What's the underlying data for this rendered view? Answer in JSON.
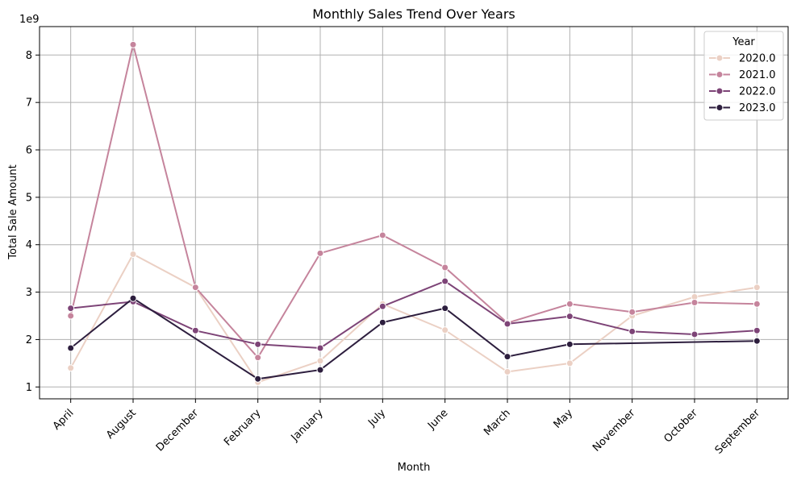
{
  "chart_data": {
    "type": "line",
    "title": "Monthly Sales Trend Over Years",
    "xlabel": "Month",
    "ylabel": "Total Sale Amount",
    "y_scale_label": "1e9",
    "categories": [
      "April",
      "August",
      "December",
      "February",
      "January",
      "July",
      "June",
      "March",
      "May",
      "November",
      "October",
      "September"
    ],
    "ylim": [
      0.75,
      8.6
    ],
    "yticks": [
      1,
      2,
      3,
      4,
      5,
      6,
      7,
      8
    ],
    "grid": true,
    "legend": {
      "title": "Year",
      "placement": "top-right"
    },
    "series": [
      {
        "name": "2020.0",
        "color": "#ebd0c4",
        "values": [
          1.4,
          3.8,
          3.1,
          1.1,
          1.55,
          2.75,
          2.2,
          1.32,
          1.5,
          2.5,
          2.9,
          3.1
        ]
      },
      {
        "name": "2021.0",
        "color": "#c5849c",
        "values": [
          2.5,
          8.22,
          3.1,
          1.62,
          3.82,
          4.2,
          3.52,
          2.35,
          2.75,
          2.58,
          2.78,
          2.75
        ]
      },
      {
        "name": "2022.0",
        "color": "#7d4477",
        "values": [
          2.66,
          2.8,
          2.19,
          1.9,
          1.82,
          2.7,
          3.23,
          2.33,
          2.49,
          2.17,
          2.11,
          2.19
        ]
      },
      {
        "name": "2023.0",
        "color": "#2d1e3e",
        "values": [
          1.82,
          2.87,
          null,
          1.17,
          1.36,
          2.36,
          2.66,
          1.64,
          1.9,
          null,
          null,
          1.97
        ]
      }
    ]
  }
}
